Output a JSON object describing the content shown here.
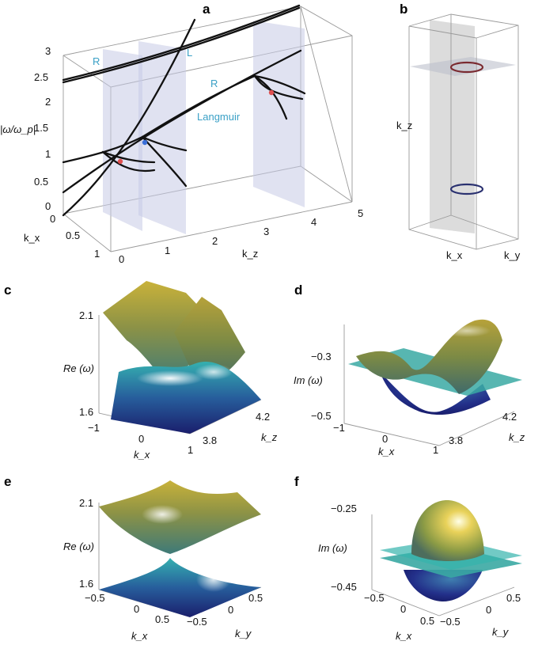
{
  "panels": {
    "a": {
      "letter": "a",
      "y_axis_label": "|ω/ω_p|",
      "y_ticks": [
        "3",
        "2.5",
        "2",
        "1.5",
        "1",
        "0.5",
        "0"
      ],
      "kx_label": "k_x",
      "kx_ticks": [
        "0",
        "0.5",
        "1"
      ],
      "kz_label": "k_z",
      "kz_ticks": [
        "0",
        "1",
        "2",
        "3",
        "4",
        "5"
      ],
      "curve_labels": {
        "R_left": "R",
        "L": "L",
        "R_right": "R",
        "Langmuir": "Langmuir"
      },
      "colors": {
        "plane": "#c6cae6",
        "band": "#111111",
        "node_red": "#e05050",
        "node_blue": "#3a6fd8",
        "label": "#3aa0c6"
      }
    },
    "b": {
      "letter": "b",
      "kz_label": "k_z",
      "kx_label": "k_x",
      "ky_label": "k_y",
      "colors": {
        "ring_top": "#7a2a30",
        "ring_bottom": "#2a3170",
        "plane": "#d6d6d6"
      }
    },
    "c": {
      "letter": "c",
      "z_label": "Re (ω)",
      "z_ticks": [
        "2.1",
        "1.6"
      ],
      "kx_label": "k_x",
      "kx_ticks": [
        "−1",
        "0",
        "1"
      ],
      "kz_label": "k_z",
      "kz_ticks": [
        "4.2",
        "3.8"
      ]
    },
    "d": {
      "letter": "d",
      "z_label": "Im (ω)",
      "z_ticks": [
        "−0.3",
        "−0.5"
      ],
      "kx_label": "k_x",
      "kx_ticks": [
        "−1",
        "0",
        "1"
      ],
      "kz_label": "k_z",
      "kz_ticks": [
        "4.2",
        "3.8"
      ]
    },
    "e": {
      "letter": "e",
      "z_label": "Re (ω)",
      "z_ticks": [
        "2.1",
        "1.6"
      ],
      "kx_label": "k_x",
      "kx_ticks": [
        "−0.5",
        "0",
        "0.5"
      ],
      "ky_label": "k_y",
      "ky_ticks": [
        "−0.5",
        "0",
        "0.5"
      ]
    },
    "f": {
      "letter": "f",
      "z_label": "Im (ω)",
      "z_ticks": [
        "−0.25",
        "−0.45"
      ],
      "kx_label": "k_x",
      "kx_ticks": [
        "−0.5",
        "0",
        "0.5"
      ],
      "ky_label": "k_y",
      "ky_ticks": [
        "−0.5",
        "0",
        "0.5"
      ]
    }
  }
}
